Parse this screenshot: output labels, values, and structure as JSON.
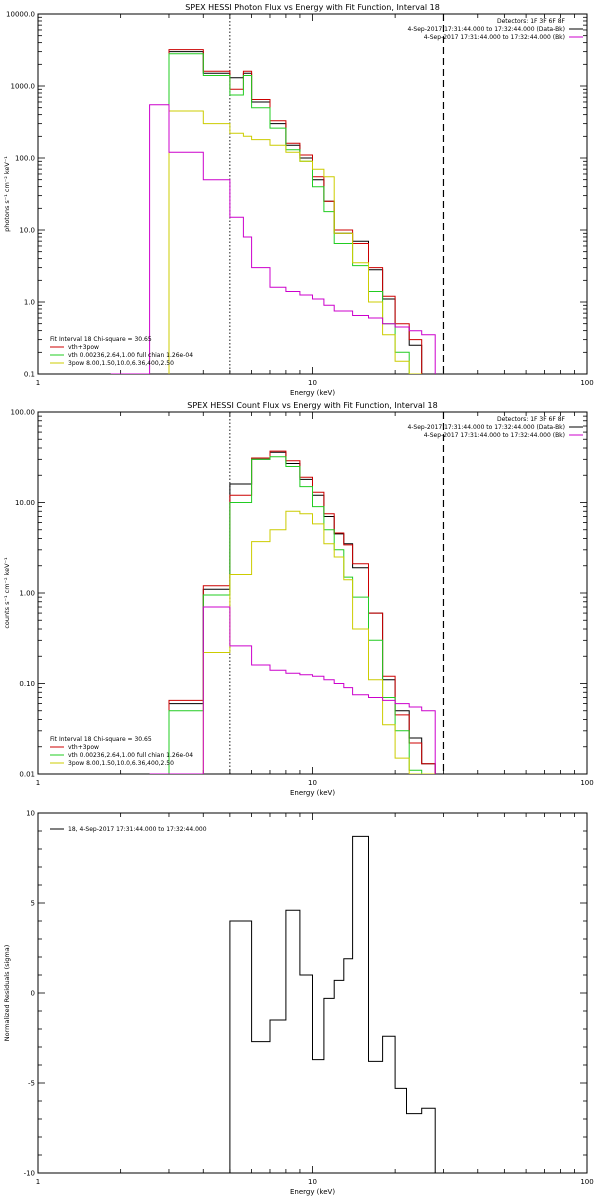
{
  "chart_data": [
    {
      "type": "line",
      "title": "SPEX HESSI Photon Flux vs Energy with Fit Function, Interval 18",
      "xlabel": "Energy (keV)",
      "ylabel": "photons s⁻¹ cm⁻² keV⁻¹",
      "xscale": "log",
      "yscale": "log",
      "xlim": [
        1,
        100
      ],
      "ylim": [
        0.1,
        10000
      ],
      "x_ticks": [
        {
          "v": 1,
          "label": "1"
        },
        {
          "v": 10,
          "label": "10"
        },
        {
          "v": 100,
          "label": "100"
        }
      ],
      "y_ticks": [
        {
          "v": 0.1,
          "label": "0.1"
        },
        {
          "v": 1,
          "label": "1.0"
        },
        {
          "v": 10,
          "label": "10.0"
        },
        {
          "v": 100,
          "label": "100.0"
        },
        {
          "v": 1000,
          "label": "1000.0"
        },
        {
          "v": 10000,
          "label": "10000.0"
        }
      ],
      "legend_topright": [
        "Detectors: 1F 3F 6F 8F",
        "4-Sep-2017 17:31:44.000 to 17:32:44.000 (Data-Bk)",
        "4-Sep-2017 17:31:44.000 to 17:32:44.000 (Bk)"
      ],
      "legend_bottomleft": [
        "Fit Interval 18   Chi-square = 30.65",
        "vth+3pow",
        "vth 0.00236,2.64,1.00  full chian 1.26e-04",
        "3pow 8.00,1.50,10.0,6.36,400,2.50"
      ],
      "vlines": [
        {
          "x": 5.0,
          "style": "dotted"
        },
        {
          "x": 30.0,
          "style": "dashed"
        }
      ],
      "edges": [
        3,
        4,
        5,
        5.6,
        6,
        7,
        8,
        9,
        10,
        11,
        12,
        14,
        16,
        18,
        20,
        22.5,
        25,
        28
      ],
      "series": [
        {
          "name": "Data-Bk",
          "color": "#000000",
          "values": [
            3000,
            1500,
            1300,
            1500,
            600,
            300,
            150,
            100,
            50,
            25,
            9,
            7,
            2.8,
            1.1,
            0.45,
            0.25
          ]
        },
        {
          "name": "vth+3pow",
          "color": "#cc0000",
          "values": [
            3200,
            1600,
            900,
            1600,
            650,
            330,
            160,
            110,
            55,
            25,
            10,
            6.5,
            3.0,
            1.2,
            0.5,
            0.3
          ]
        },
        {
          "name": "vth",
          "color": "#22cc22",
          "values": [
            2800,
            1400,
            750,
            1400,
            500,
            260,
            130,
            90,
            40,
            18,
            6.5,
            3.2,
            1.4,
            0.5,
            0.2,
            0.1
          ]
        },
        {
          "name": "3pow",
          "color": "#cccc00",
          "values": [
            450,
            300,
            220,
            200,
            180,
            150,
            120,
            90,
            70,
            55,
            9,
            3.5,
            1.0,
            0.35,
            0.15,
            0.1
          ]
        },
        {
          "name": "Bk",
          "color": "#cc00cc",
          "values": [
            0.1,
            0.1,
            550,
            120,
            50,
            15,
            8,
            3,
            1.6,
            1.4,
            1.25,
            1.1,
            0.9,
            0.75,
            0.65,
            0.6,
            0.5,
            0.45,
            0.4,
            0.35
          ]
        }
      ]
    },
    {
      "type": "line",
      "title": "SPEX HESSI Count Flux vs Energy with Fit Function, Interval 18",
      "xlabel": "Energy (keV)",
      "ylabel": "counts s⁻¹ cm⁻² keV⁻¹",
      "xscale": "log",
      "yscale": "log",
      "xlim": [
        1,
        100
      ],
      "ylim": [
        0.01,
        100
      ],
      "x_ticks": [
        {
          "v": 1,
          "label": "1"
        },
        {
          "v": 10,
          "label": "10"
        },
        {
          "v": 100,
          "label": "100"
        }
      ],
      "y_ticks": [
        {
          "v": 0.01,
          "label": "0.01"
        },
        {
          "v": 0.1,
          "label": "0.10"
        },
        {
          "v": 1,
          "label": "1.00"
        },
        {
          "v": 10,
          "label": "10.00"
        },
        {
          "v": 100,
          "label": "100.00"
        }
      ],
      "legend_topright": [
        "Detectors: 1F 3F 6F 8F",
        "4-Sep-2017 17:31:44.000 to 17:32:44.000 (Data-Bk)",
        "4-Sep-2017 17:31:44.000 to 17:32:44.000 (Bk)"
      ],
      "legend_bottomleft": [
        "Fit Interval 18   Chi-square = 30.65",
        "vth+3pow",
        "vth 0.00236,2.64,1.00  full chian 1.26e-04",
        "3pow 8.00,1.50,10.0,6.36,400,2.50"
      ],
      "vlines": [
        {
          "x": 5.0,
          "style": "dotted"
        },
        {
          "x": 30.0,
          "style": "dashed"
        }
      ],
      "edges": [
        3,
        4,
        5,
        6,
        7,
        8,
        9,
        10,
        11,
        12,
        13,
        14,
        16,
        18,
        20,
        22.5,
        25,
        28
      ],
      "series": [
        {
          "name": "Data-Bk",
          "color": "#000000",
          "values": [
            0.06,
            1.1,
            16,
            30,
            36,
            27,
            18,
            12,
            7,
            4.5,
            3.5,
            1.9,
            0.6,
            0.11,
            0.05,
            0.025,
            0.013
          ]
        },
        {
          "name": "vth+3pow",
          "color": "#cc0000",
          "values": [
            0.065,
            1.2,
            12,
            31,
            37,
            29,
            19,
            13,
            7.5,
            4.6,
            3.4,
            2.1,
            0.6,
            0.12,
            0.045,
            0.022,
            0.013
          ]
        },
        {
          "name": "vth",
          "color": "#22cc22",
          "values": [
            0.05,
            0.95,
            10,
            30,
            32,
            25,
            15,
            9,
            5,
            3,
            1.5,
            0.9,
            0.3,
            0.07,
            0.03,
            0.011,
            0.01
          ]
        },
        {
          "name": "3pow",
          "color": "#cccc00",
          "values": [
            0.01,
            0.22,
            1.6,
            3.7,
            5.0,
            8.0,
            7.5,
            5.8,
            3.5,
            2.5,
            1.4,
            0.4,
            0.11,
            0.035,
            0.015,
            0.01,
            0.01
          ]
        },
        {
          "name": "Bk",
          "color": "#cc00cc",
          "values": [
            0.01,
            0.01,
            0.7,
            0.26,
            0.16,
            0.14,
            0.13,
            0.125,
            0.12,
            0.11,
            0.1,
            0.09,
            0.075,
            0.07,
            0.065,
            0.06,
            0.055,
            0.05
          ]
        }
      ]
    },
    {
      "type": "line",
      "title": "",
      "xlabel": "Energy (keV)",
      "ylabel": "Normalized Residuals (sigma)",
      "xscale": "log",
      "yscale": "linear",
      "xlim": [
        1,
        100
      ],
      "ylim": [
        -10,
        10
      ],
      "x_ticks": [
        {
          "v": 1,
          "label": "1"
        },
        {
          "v": 10,
          "label": "10"
        },
        {
          "v": 100,
          "label": "100"
        }
      ],
      "y_ticks": [
        {
          "v": -10,
          "label": "-10"
        },
        {
          "v": -5,
          "label": "-5"
        },
        {
          "v": 0,
          "label": "0"
        },
        {
          "v": 5,
          "label": "5"
        },
        {
          "v": 10,
          "label": "10"
        }
      ],
      "legend_topleft": [
        "18,  4-Sep-2017 17:31:44.000 to 17:32:44.000"
      ],
      "edges": [
        5,
        6,
        7,
        8,
        9,
        10,
        11,
        12,
        13,
        14,
        16,
        18,
        20,
        22,
        25,
        28,
        30
      ],
      "series": [
        {
          "name": "18",
          "color": "#000000",
          "values": [
            4.0,
            -2.7,
            -1.5,
            4.6,
            1.0,
            -3.7,
            -0.3,
            0.7,
            1.9,
            8.7,
            -3.8,
            -2.4,
            -5.3,
            -6.7,
            -6.4,
            -10
          ]
        }
      ]
    }
  ]
}
